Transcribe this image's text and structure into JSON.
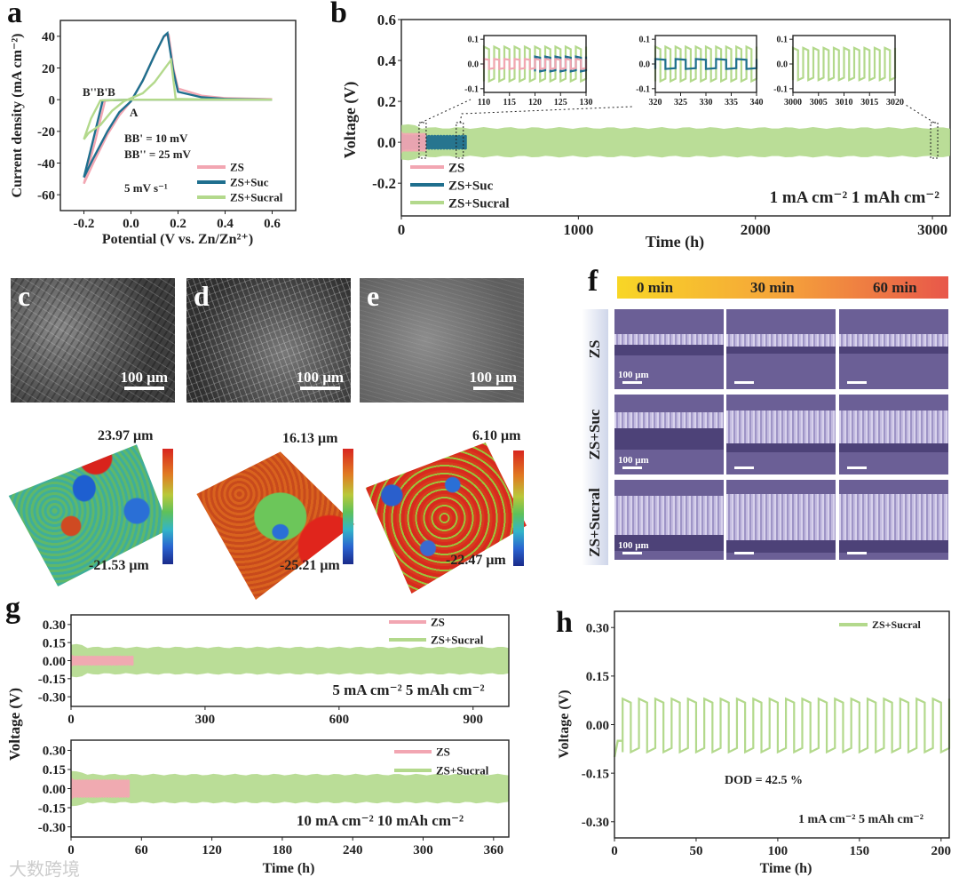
{
  "panel_labels": {
    "a": "a",
    "b": "b",
    "c": "c",
    "d": "d",
    "e": "e",
    "f": "f",
    "g": "g",
    "h": "h"
  },
  "colors": {
    "ZS": "#f2a6b2",
    "ZS+Suc": "#1f6f8e",
    "ZS+Sucral": "#b3d98c"
  },
  "sem": {
    "scale_bar": "100 μm",
    "c_label": "c",
    "d_label": "d",
    "e_label": "e"
  },
  "profilometry": [
    {
      "max": "23.97 μm",
      "min": "-21.53 μm"
    },
    {
      "max": "16.13 μm",
      "min": "-25.21 μm"
    },
    {
      "max": "6.10 μm",
      "min": "-22.47 μm"
    }
  ],
  "panel_f": {
    "times": [
      "0 min",
      "30 min",
      "60 min"
    ],
    "rows": [
      "ZS",
      "ZS+Suc",
      "ZS+Sucral"
    ],
    "scale_bar": "100 μm"
  },
  "watermark": "大数跨境",
  "chart_data": [
    {
      "id": "a",
      "type": "line",
      "xlabel": "Potential (V vs. Zn/Zn²⁺)",
      "ylabel": "Current density (mA cm⁻²)",
      "xlim": [
        -0.3,
        0.7
      ],
      "ylim": [
        -70,
        50
      ],
      "xticks": [
        -0.2,
        0.0,
        0.2,
        0.4,
        0.6
      ],
      "xticklabels": [
        "-0.2",
        "0.0",
        "0.2",
        "0.4",
        "0.6"
      ],
      "yticks": [
        -60,
        -40,
        -20,
        0,
        20,
        40
      ],
      "yticklabels": [
        "-60",
        "-40",
        "-20",
        "0",
        "20",
        "40"
      ],
      "annotations": {
        "peaks": "B''B'B",
        "A": "A",
        "bb1": "BB' = 10 mV",
        "bb2": "BB'' = 25 mV",
        "rate": "5 mV s⁻¹"
      },
      "series": [
        {
          "name": "ZS",
          "points": [
            [
              0.6,
              0
            ],
            [
              0.2,
              0
            ],
            [
              0,
              0
            ],
            [
              -0.11,
              -0.5
            ],
            [
              -0.15,
              -25
            ],
            [
              -0.2,
              -53
            ],
            [
              -0.16,
              -40
            ],
            [
              -0.1,
              -22
            ],
            [
              -0.05,
              -10
            ],
            [
              0,
              -1
            ],
            [
              0.05,
              12
            ],
            [
              0.1,
              28
            ],
            [
              0.14,
              40
            ],
            [
              0.16,
              41
            ],
            [
              0.18,
              20
            ],
            [
              0.2,
              7
            ],
            [
              0.3,
              2.5
            ],
            [
              0.4,
              1
            ],
            [
              0.6,
              0.3
            ]
          ]
        },
        {
          "name": "ZS+Suc",
          "points": [
            [
              0.6,
              0
            ],
            [
              0.2,
              0
            ],
            [
              0,
              0
            ],
            [
              -0.12,
              -0.5
            ],
            [
              -0.16,
              -25
            ],
            [
              -0.2,
              -49
            ],
            [
              -0.16,
              -37
            ],
            [
              -0.1,
              -20
            ],
            [
              -0.05,
              -8
            ],
            [
              0,
              -1
            ],
            [
              0.05,
              12
            ],
            [
              0.1,
              28
            ],
            [
              0.14,
              40
            ],
            [
              0.155,
              42
            ],
            [
              0.18,
              18
            ],
            [
              0.2,
              5
            ],
            [
              0.3,
              1.5
            ],
            [
              0.4,
              0.5
            ],
            [
              0.6,
              0
            ]
          ]
        },
        {
          "name": "ZS+Sucral",
          "points": [
            [
              0.6,
              0
            ],
            [
              0.2,
              0
            ],
            [
              0,
              0
            ],
            [
              -0.13,
              -0.5
            ],
            [
              -0.17,
              -12
            ],
            [
              -0.2,
              -25
            ],
            [
              -0.18,
              -21
            ],
            [
              -0.13,
              -16
            ],
            [
              -0.08,
              -7
            ],
            [
              -0.03,
              -1
            ],
            [
              0.05,
              4
            ],
            [
              0.1,
              11
            ],
            [
              0.15,
              21
            ],
            [
              0.17,
              25
            ],
            [
              0.19,
              0.5
            ],
            [
              0.3,
              0.2
            ],
            [
              0.6,
              0
            ]
          ]
        }
      ],
      "legend": [
        "ZS",
        "ZS+Suc",
        "ZS+Sucral"
      ],
      "legend_position": "bottom-right"
    },
    {
      "id": "b",
      "type": "area",
      "xlabel": "Time (h)",
      "ylabel": "Voltage (V)",
      "xlim": [
        0,
        3100
      ],
      "ylim": [
        -0.36,
        0.6
      ],
      "xticks": [
        0,
        1000,
        2000,
        3000
      ],
      "xticklabels": [
        "0",
        "1000",
        "2000",
        "3000"
      ],
      "yticks": [
        -0.2,
        0.0,
        0.2,
        0.4,
        0.6
      ],
      "yticklabels": [
        "-0.2",
        "0.0",
        "0.2",
        "0.4",
        "0.6"
      ],
      "condition": "1 mA cm⁻² 1 mAh cm⁻²",
      "series": [
        {
          "name": "ZS+Sucral",
          "t_start": 0,
          "t_end": 3100,
          "amplitude": 0.07
        },
        {
          "name": "ZS+Suc",
          "t_start": 0,
          "t_end": 370,
          "amplitude": 0.035
        },
        {
          "name": "ZS",
          "t_start": 0,
          "t_end": 140,
          "amplitude": 0.045
        }
      ],
      "legend": [
        "ZS",
        "ZS+Suc",
        "ZS+Sucral"
      ],
      "legend_position": "bottom-left",
      "insets": [
        {
          "xlim": [
            110,
            130
          ],
          "ylim": [
            -0.115,
            0.115
          ],
          "xticks": [
            110,
            115,
            120,
            125,
            130
          ],
          "xticklabels": [
            "110",
            "115",
            "120",
            "125",
            "130"
          ],
          "yticks": [
            -0.1,
            0,
            0.1
          ],
          "yticklabels": [
            "-0.1",
            "0.0",
            "0.1"
          ],
          "waves": [
            {
              "name": "ZS+Sucral",
              "period": 2,
              "high": 0.07,
              "low": -0.07
            },
            {
              "name": "ZS+Suc",
              "period": 2,
              "high": 0.03,
              "low": -0.03,
              "t_start": 120
            },
            {
              "name": "ZS",
              "period": 2,
              "high": 0.02,
              "low": -0.02,
              "t_end": 130
            }
          ]
        },
        {
          "xlim": [
            320,
            340
          ],
          "ylim": [
            -0.115,
            0.115
          ],
          "xticks": [
            320,
            325,
            330,
            335,
            340
          ],
          "xticklabels": [
            "320",
            "325",
            "330",
            "335",
            "340"
          ],
          "yticks": [
            -0.1,
            0,
            0.1
          ],
          "yticklabels": [
            "-0.1",
            "0.0",
            "0.1"
          ],
          "waves": [
            {
              "name": "ZS+Sucral",
              "period": 2,
              "high": 0.07,
              "low": -0.07
            },
            {
              "name": "ZS+Suc",
              "period": 4,
              "high": 0.02,
              "low": -0.02
            }
          ]
        },
        {
          "xlim": [
            3000,
            3020
          ],
          "ylim": [
            -0.115,
            0.115
          ],
          "xticks": [
            3000,
            3005,
            3010,
            3015,
            3020
          ],
          "xticklabels": [
            "3000",
            "3005",
            "3010",
            "3015",
            "3020"
          ],
          "yticks": [
            -0.1,
            0,
            0.1
          ],
          "yticklabels": [
            "-0.1",
            "0.0",
            "0.1"
          ],
          "waves": [
            {
              "name": "ZS+Sucral",
              "period": 2,
              "high": 0.065,
              "low": -0.065
            }
          ]
        }
      ]
    },
    {
      "id": "g1",
      "type": "area",
      "xlabel": "",
      "ylabel": "Voltage (V)",
      "xlim": [
        0,
        980
      ],
      "ylim": [
        -0.38,
        0.38
      ],
      "xticks": [
        0,
        300,
        600,
        900
      ],
      "xticklabels": [
        "0",
        "300",
        "600",
        "900"
      ],
      "yticks": [
        -0.3,
        -0.15,
        0,
        0.15,
        0.3
      ],
      "yticklabels": [
        "-0.30",
        "-0.15",
        "0.00",
        "0.15",
        "0.30"
      ],
      "condition": "5 mA cm⁻² 5 mAh cm⁻²",
      "series": [
        {
          "name": "ZS+Sucral",
          "t_start": 0,
          "t_end": 980,
          "amplitude": 0.11
        },
        {
          "name": "ZS",
          "t_start": 0,
          "t_end": 140,
          "amplitude": 0.04
        }
      ],
      "legend": [
        "ZS",
        "ZS+Sucral"
      ],
      "legend_position": "top-right"
    },
    {
      "id": "g2",
      "type": "area",
      "xlabel": "Time (h)",
      "ylabel": "Voltage (V)",
      "xlim": [
        0,
        373
      ],
      "ylim": [
        -0.38,
        0.38
      ],
      "xticks": [
        0,
        60,
        120,
        180,
        240,
        300,
        360
      ],
      "xticklabels": [
        "0",
        "60",
        "120",
        "180",
        "240",
        "300",
        "360"
      ],
      "yticks": [
        -0.3,
        -0.15,
        0,
        0.15,
        0.3
      ],
      "yticklabels": [
        "-0.30",
        "-0.15",
        "0.00",
        "0.15",
        "0.30"
      ],
      "condition": "10 mA cm⁻² 10 mAh cm⁻²",
      "series": [
        {
          "name": "ZS+Sucral",
          "t_start": 0,
          "t_end": 373,
          "amplitude": 0.11
        },
        {
          "name": "ZS",
          "t_start": 0,
          "t_end": 50,
          "amplitude": 0.07
        }
      ],
      "legend": [
        "ZS",
        "ZS+Sucral"
      ],
      "legend_position": "top-right"
    },
    {
      "id": "h",
      "type": "line",
      "xlabel": "Time (h)",
      "ylabel": "Voltage (V)",
      "xlim": [
        0,
        205
      ],
      "ylim": [
        -0.35,
        0.35
      ],
      "xticks": [
        0,
        50,
        100,
        150,
        200
      ],
      "xticklabels": [
        "0",
        "50",
        "100",
        "150",
        "200"
      ],
      "yticks": [
        -0.3,
        -0.15,
        0,
        0.15,
        0.3
      ],
      "yticklabels": [
        "-0.30",
        "-0.15",
        "0.00",
        "0.15",
        "0.30"
      ],
      "dod": "DOD = 42.5 %",
      "condition": "1 mA cm⁻² 5 mAh cm⁻²",
      "series": [
        {
          "name": "ZS+Sucral",
          "period": 10,
          "t_start": 5,
          "t_end": 205,
          "high": 0.08,
          "low": -0.085
        }
      ],
      "legend": [
        "ZS+Sucral"
      ],
      "legend_position": "top-right"
    }
  ]
}
